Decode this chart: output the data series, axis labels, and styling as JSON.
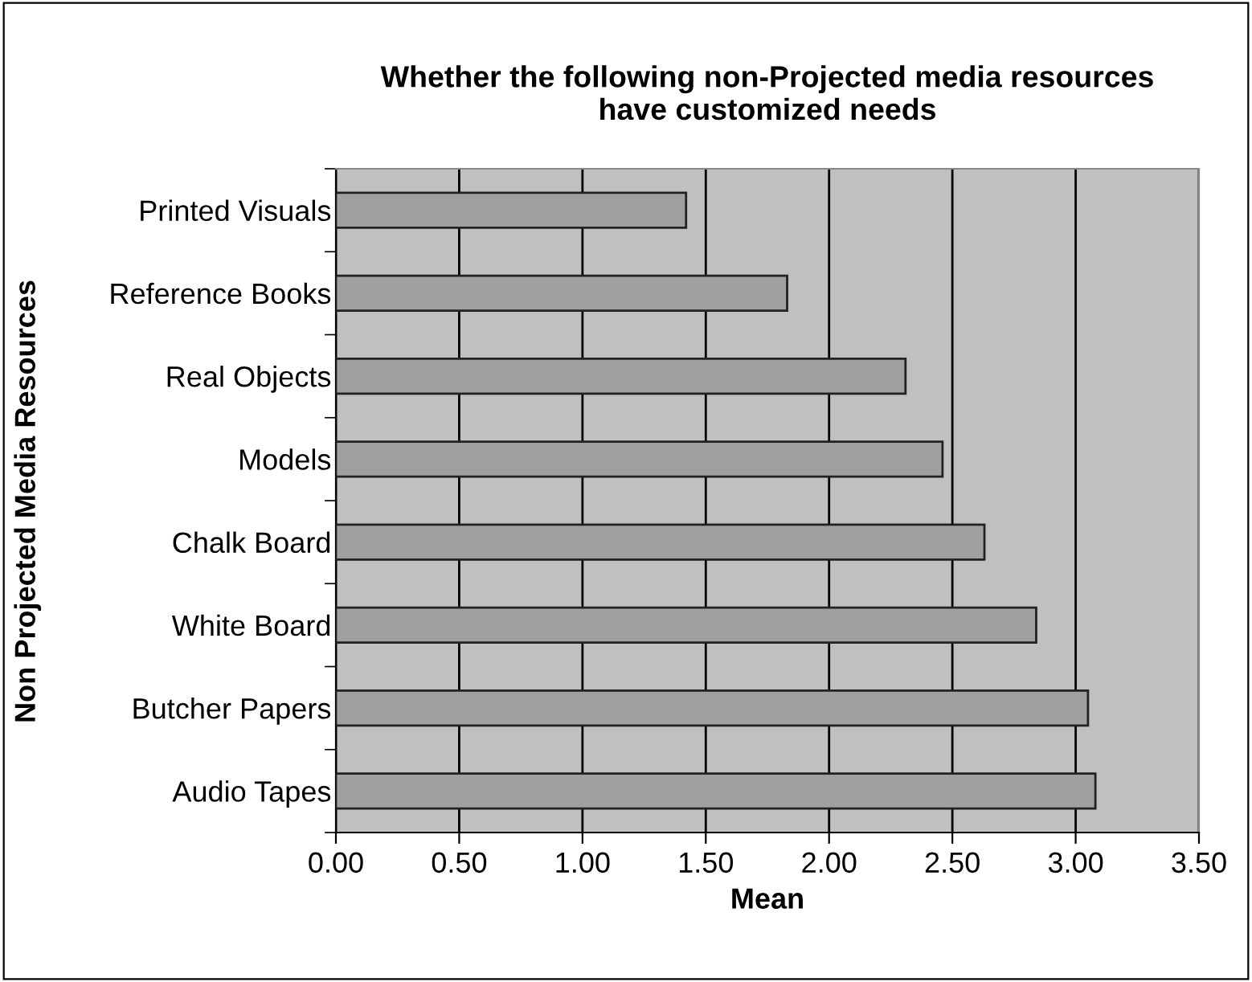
{
  "chart_data": {
    "type": "bar",
    "orientation": "horizontal",
    "title": "Whether the following non-Projected media resources\nhave customized needs",
    "xlabel": "Mean",
    "ylabel": "Non Projected Media Resources",
    "categories": [
      "Printed Visuals",
      "Reference Books",
      "Real Objects",
      "Models",
      "Chalk Board",
      "White Board",
      "Butcher Papers",
      "Audio Tapes"
    ],
    "values": [
      1.42,
      1.83,
      2.31,
      2.46,
      2.63,
      2.84,
      3.05,
      3.08
    ],
    "color": "#a0a0a0",
    "xlim": [
      0,
      3.5
    ],
    "xticks": [
      {
        "value": 0,
        "label": "0.00"
      },
      {
        "value": 0.5,
        "label": "0.50"
      },
      {
        "value": 1,
        "label": "1.00"
      },
      {
        "value": 1.5,
        "label": "1.50"
      },
      {
        "value": 2,
        "label": "2.00"
      },
      {
        "value": 2.5,
        "label": "2.50"
      },
      {
        "value": 3,
        "label": "3.00"
      },
      {
        "value": 3.5,
        "label": "3.50"
      }
    ],
    "grid": "x",
    "legend": false
  }
}
